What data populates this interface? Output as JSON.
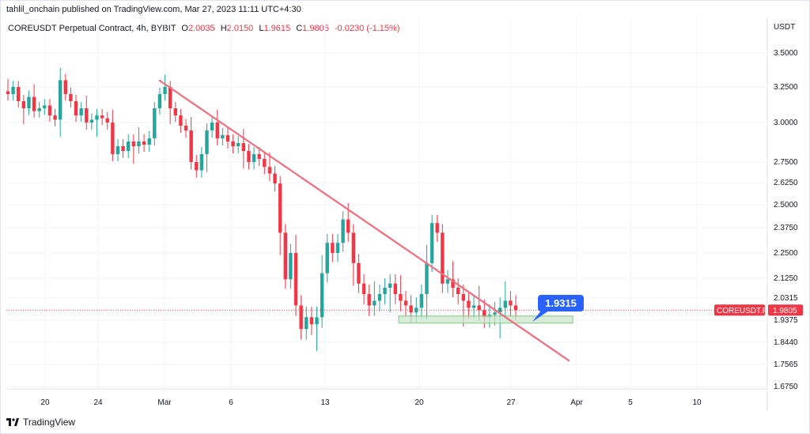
{
  "header": {
    "publisher": "tahlil_onchain published on TradingView.com, Mar 27, 2023 11:11 UTC+4:30"
  },
  "legend": {
    "symbol": "COREUSDT Perpetual Contract, 4h, BYBIT",
    "open_label": "O",
    "open": "2.0035",
    "high_label": "H",
    "high": "2.0150",
    "low_label": "L",
    "low": "1.9615",
    "close_label": "C",
    "close": "1.9805",
    "change": "-0.0230 (-1.15%)"
  },
  "axis": {
    "unit": "USDT"
  },
  "footer": {
    "brand": "TradingView"
  },
  "colors": {
    "up": "#26a69a",
    "down": "#f23645",
    "trendline": "#f06d7e",
    "zone_fill": "#c8e6c9",
    "zone_stroke": "#81c784",
    "callout": "#2962ff",
    "price_label_bg": "#f23645"
  },
  "chart_data": {
    "type": "candlestick",
    "title": "COREUSDT Perpetual Contract, 4h, BYBIT",
    "y_ticks": [
      "3.5000",
      "3.2500",
      "3.0000",
      "2.7500",
      "2.6250",
      "2.5000",
      "2.3750",
      "2.2500",
      "2.1250",
      "2.0315",
      "1.9375",
      "1.8440",
      "1.7565",
      "1.6750"
    ],
    "x_ticks": [
      "20",
      "24",
      "Mar",
      "6",
      "13",
      "20",
      "27",
      "Apr",
      "5",
      "10"
    ],
    "price_label_symbol": "COREUSDT.P",
    "price_label_value": "1.9805",
    "last_price": 1.9805,
    "trendline": {
      "from": {
        "date": "Feb 28",
        "price": 3.3
      },
      "to": {
        "date": "Mar 31",
        "price": 1.77
      }
    },
    "support_zone": {
      "from_date": "Mar 18",
      "to_date": "Mar 31",
      "top": 1.955,
      "bottom": 1.925
    },
    "callout_value": "1.9315",
    "closes": [
      3.2,
      3.25,
      3.15,
      3.1,
      3.18,
      3.08,
      3.1,
      3.12,
      3.05,
      3.02,
      3.3,
      3.2,
      3.15,
      3.05,
      3.1,
      3.0,
      3.02,
      3.05,
      3.03,
      3.0,
      2.8,
      2.85,
      2.82,
      2.88,
      2.85,
      2.88,
      2.86,
      2.9,
      3.1,
      3.2,
      3.25,
      3.1,
      3.05,
      2.98,
      2.95,
      2.75,
      2.7,
      2.8,
      2.95,
      3.0,
      2.9,
      2.92,
      2.88,
      2.85,
      2.87,
      2.82,
      2.75,
      2.8,
      2.77,
      2.72,
      2.68,
      2.62,
      2.35,
      2.12,
      2.25,
      2.0,
      1.9,
      1.95,
      1.92,
      1.95,
      2.15,
      2.3,
      2.25,
      2.3,
      2.42,
      2.35,
      2.2,
      2.1,
      2.05,
      2.0,
      2.02,
      2.05,
      2.08,
      2.1,
      2.05,
      2.02,
      2.0,
      1.97,
      1.99,
      2.05,
      2.2,
      2.4,
      2.35,
      2.1,
      2.12,
      2.08,
      2.05,
      2.02,
      1.99,
      2.0,
      1.98,
      1.95,
      1.96,
      1.97,
      1.99,
      2.02,
      2.0,
      1.98
    ]
  }
}
